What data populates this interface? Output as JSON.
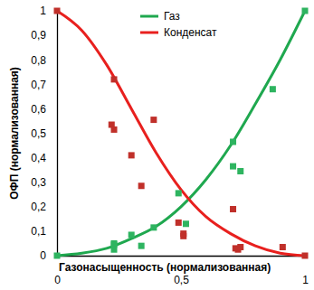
{
  "chart_data": {
    "type": "line",
    "x_label": "Газонасыщенность (нормализованная)",
    "y_label": "ОФП (нормализованная)",
    "xlim": [
      0,
      1
    ],
    "xticks": [
      0,
      {
        "value": 0.5,
        "label": "0,5"
      },
      1
    ],
    "ylim": [
      0,
      1
    ],
    "yticks": [
      0,
      {
        "value": 0.1,
        "label": "0,1"
      },
      {
        "value": 0.2,
        "label": "0,2"
      },
      {
        "value": 0.3,
        "label": "0,3"
      },
      {
        "value": 0.4,
        "label": "0,4"
      },
      {
        "value": 0.5,
        "label": "0,5"
      },
      {
        "value": 0.6,
        "label": "0,6"
      },
      {
        "value": 0.7,
        "label": "0,7"
      },
      {
        "value": 0.8,
        "label": "0,8"
      },
      {
        "value": 0.9,
        "label": "0,9"
      },
      1
    ],
    "grid": false,
    "legend": "top",
    "series": [
      {
        "name": "Газ",
        "type": "line",
        "color": "#1fa84f",
        "line_style": "solid",
        "x": [
          0,
          0.1,
          0.2,
          0.3,
          0.4,
          0.5,
          0.6,
          0.7,
          0.8,
          0.9,
          1
        ],
        "values": [
          0,
          0.01,
          0.03,
          0.07,
          0.12,
          0.2,
          0.31,
          0.45,
          0.62,
          0.8,
          1
        ]
      },
      {
        "name": "Конденсат",
        "type": "line",
        "color": "#e8201e",
        "line_style": "solid",
        "x": [
          0,
          0.1,
          0.2,
          0.3,
          0.4,
          0.5,
          0.6,
          0.7,
          0.8,
          0.9,
          1
        ],
        "values": [
          1,
          0.92,
          0.78,
          0.6,
          0.42,
          0.27,
          0.16,
          0.09,
          0.04,
          0.01,
          0
        ]
      },
      {
        "type": "scatter",
        "color": "#c0302a",
        "marker": "square",
        "x": [
          0,
          0.23,
          0.22,
          0.23,
          0.3,
          0.34,
          0.39,
          0.49,
          0.51,
          0.51,
          0.71,
          0.72,
          0.73,
          0.74,
          0.91,
          1
        ],
        "values": [
          1,
          0.72,
          0.535,
          0.515,
          0.41,
          0.285,
          0.555,
          0.135,
          0.08,
          0.09,
          0.19,
          0.03,
          0.025,
          0.035,
          0.035,
          0
        ]
      },
      {
        "type": "scatter",
        "color": "#2eb460",
        "marker": "square",
        "x": [
          0,
          0.23,
          0.23,
          0.23,
          0.3,
          0.34,
          0.39,
          0.49,
          0.52,
          0.71,
          0.71,
          0.74,
          0.87,
          1
        ],
        "values": [
          0,
          0.025,
          0.045,
          0.05,
          0.085,
          0.04,
          0.115,
          0.255,
          0.13,
          0.365,
          0.465,
          0.345,
          0.68,
          1
        ]
      }
    ]
  }
}
